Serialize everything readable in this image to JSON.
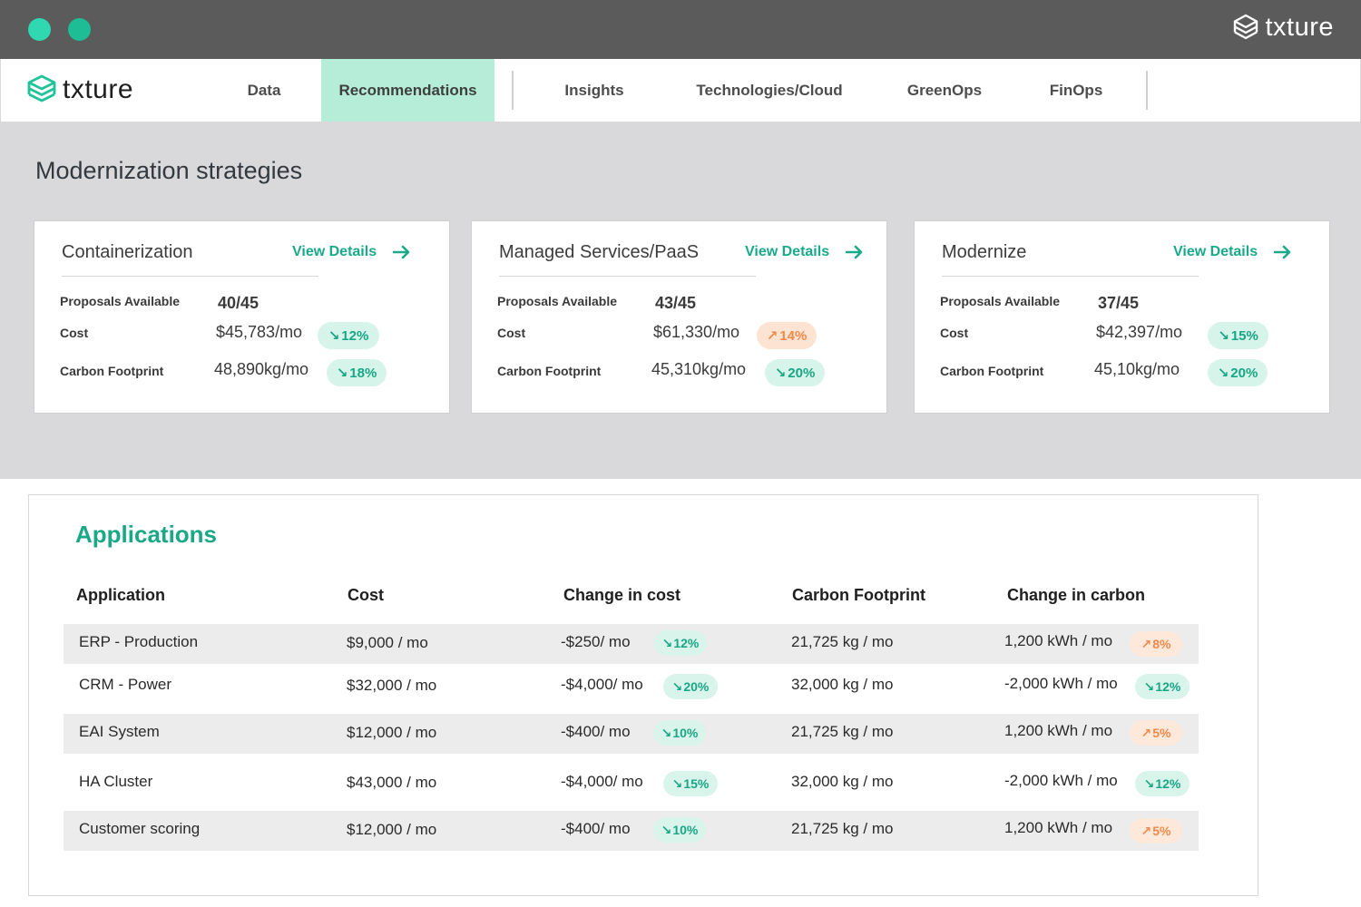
{
  "window": {
    "brand": "txture"
  },
  "header": {
    "logo_text": "txture"
  },
  "nav": {
    "items": [
      "Data",
      "Recommendations",
      "Insights",
      "Technologies/Cloud",
      "GreenOps",
      "FinOps"
    ],
    "active": "Recommendations"
  },
  "strategies": {
    "title": "Modernization strategies",
    "view_details_label": "View Details",
    "metric_labels": {
      "proposals": "Proposals Available",
      "cost": "Cost",
      "carbon": "Carbon Footprint"
    },
    "cards": [
      {
        "title": "Containerization",
        "proposals": "40/45",
        "cost": "$45,783/mo",
        "cost_change": "12%",
        "cost_trend": "down",
        "carbon": "48,890kg/mo",
        "carbon_change": "18%",
        "carbon_trend": "down"
      },
      {
        "title": "Managed Services/PaaS",
        "proposals": "43/45",
        "cost": "$61,330/mo",
        "cost_change": "14%",
        "cost_trend": "up",
        "carbon": "45,310kg/mo",
        "carbon_change": "20%",
        "carbon_trend": "down"
      },
      {
        "title": "Modernize",
        "proposals": "37/45",
        "cost": "$42,397/mo",
        "cost_change": "15%",
        "cost_trend": "down",
        "carbon": "45,10kg/mo",
        "carbon_change": "20%",
        "carbon_trend": "down"
      }
    ]
  },
  "applications": {
    "title": "Applications",
    "columns": [
      "Application",
      "Cost",
      "Change in cost",
      "Carbon Footprint",
      "Change in carbon"
    ],
    "rows": [
      {
        "name": "ERP - Production",
        "cost": "$9,000 / mo",
        "cost_change": "-$250/ mo",
        "cost_pct": "12%",
        "cost_trend": "down",
        "carbon": "21,725 kg / mo",
        "carbon_change": "1,200 kWh / mo",
        "carbon_pct": "8%",
        "carbon_trend": "up"
      },
      {
        "name": "CRM - Power",
        "cost": "$32,000 / mo",
        "cost_change": "-$4,000/ mo",
        "cost_pct": "20%",
        "cost_trend": "down",
        "carbon": "32,000 kg / mo",
        "carbon_change": "-2,000 kWh / mo",
        "carbon_pct": "12%",
        "carbon_trend": "down"
      },
      {
        "name": "EAI System",
        "cost": "$12,000 / mo",
        "cost_change": "-$400/ mo",
        "cost_pct": "10%",
        "cost_trend": "down",
        "carbon": "21,725 kg / mo",
        "carbon_change": "1,200 kWh / mo",
        "carbon_pct": "5%",
        "carbon_trend": "up"
      },
      {
        "name": "HA Cluster",
        "cost": "$43,000 / mo",
        "cost_change": "-$4,000/ mo",
        "cost_pct": "15%",
        "cost_trend": "down",
        "carbon": "32,000 kg / mo",
        "carbon_change": "-2,000 kWh / mo",
        "carbon_pct": "12%",
        "carbon_trend": "down"
      },
      {
        "name": "Customer scoring",
        "cost": "$12,000 / mo",
        "cost_change": "-$400/ mo",
        "cost_pct": "10%",
        "cost_trend": "down",
        "carbon": "21,725 kg / mo",
        "carbon_change": "1,200 kWh / mo",
        "carbon_pct": "5%",
        "carbon_trend": "up"
      }
    ]
  },
  "colors": {
    "accent": "#1ba886",
    "active_tab": "#b5edd9",
    "decrease": "#18a685",
    "increase": "#ef8a4c",
    "titlebar": "#5b5b5b",
    "section_bg": "#d9d9db"
  }
}
